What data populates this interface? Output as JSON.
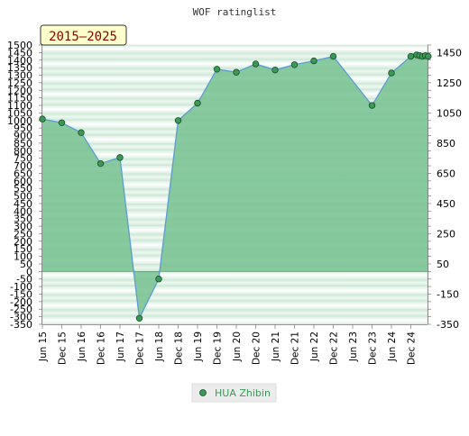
{
  "chart_data": {
    "type": "area",
    "title": "WOF ratinglist",
    "period_label": "2015–2025",
    "legend": {
      "entries": [
        "HUA Zhibin"
      ],
      "placement": "bottom-center"
    },
    "colors": {
      "area_fill": "#75c18f",
      "line": "#5b9bd5",
      "marker": "#3a9a55",
      "legend_text": "#3a9a55"
    },
    "grid": "horizontal-bands",
    "left_axis": {
      "ylim": [
        -350,
        1500
      ],
      "ticks": [
        -350,
        -300,
        -250,
        -200,
        -150,
        -100,
        -50,
        0,
        50,
        100,
        150,
        200,
        250,
        300,
        350,
        400,
        450,
        500,
        550,
        600,
        650,
        700,
        750,
        800,
        850,
        900,
        950,
        1000,
        1050,
        1100,
        1150,
        1200,
        1250,
        1300,
        1350,
        1400,
        1450,
        1500
      ]
    },
    "right_axis": {
      "ylim": [
        -350,
        1500
      ],
      "ticks": [
        -350,
        -150,
        50,
        250,
        450,
        650,
        850,
        1050,
        1250,
        1450
      ]
    },
    "x_tick_labels": [
      "Jun 15",
      "Dec 15",
      "Jun 16",
      "Dec 16",
      "Jun 17",
      "Dec 17",
      "Jun 18",
      "Dec 18",
      "Jun 19",
      "Dec 19",
      "Jun 20",
      "Dec 20",
      "Jun 21",
      "Dec 21",
      "Jun 22",
      "Dec 22",
      "Jun 23",
      "Dec 23",
      "Jun 24",
      "Dec 24"
    ],
    "series": [
      {
        "name": "HUA Zhibin",
        "x": [
          "Jun 15",
          "Dec 15",
          "Jun 16",
          "Dec 16",
          "Jun 17",
          "Dec 17",
          "Jun 18",
          "Dec 18",
          "Jun 19",
          "Dec 19",
          "Jun 20",
          "Dec 20",
          "Jun 21",
          "Dec 21",
          "Jun 22",
          "Dec 22",
          "Jun 23",
          "Dec 23",
          "Jun 24",
          "Dec 24",
          "Feb 25",
          "Mar 25",
          "Apr 25",
          "May 25",
          "Jun 25"
        ],
        "x_index": [
          0,
          1,
          2,
          3,
          4,
          5,
          6,
          7,
          8,
          9,
          10,
          11,
          12,
          13,
          14,
          15,
          16,
          17,
          18,
          19,
          19.3,
          19.45,
          19.6,
          19.75,
          19.9
        ],
        "values": [
          1010,
          985,
          920,
          715,
          755,
          -310,
          -50,
          1000,
          1115,
          1340,
          1320,
          1375,
          1335,
          1370,
          1395,
          1425,
          null,
          1100,
          1315,
          1425,
          1435,
          1430,
          1425,
          1430,
          1425
        ]
      }
    ]
  }
}
